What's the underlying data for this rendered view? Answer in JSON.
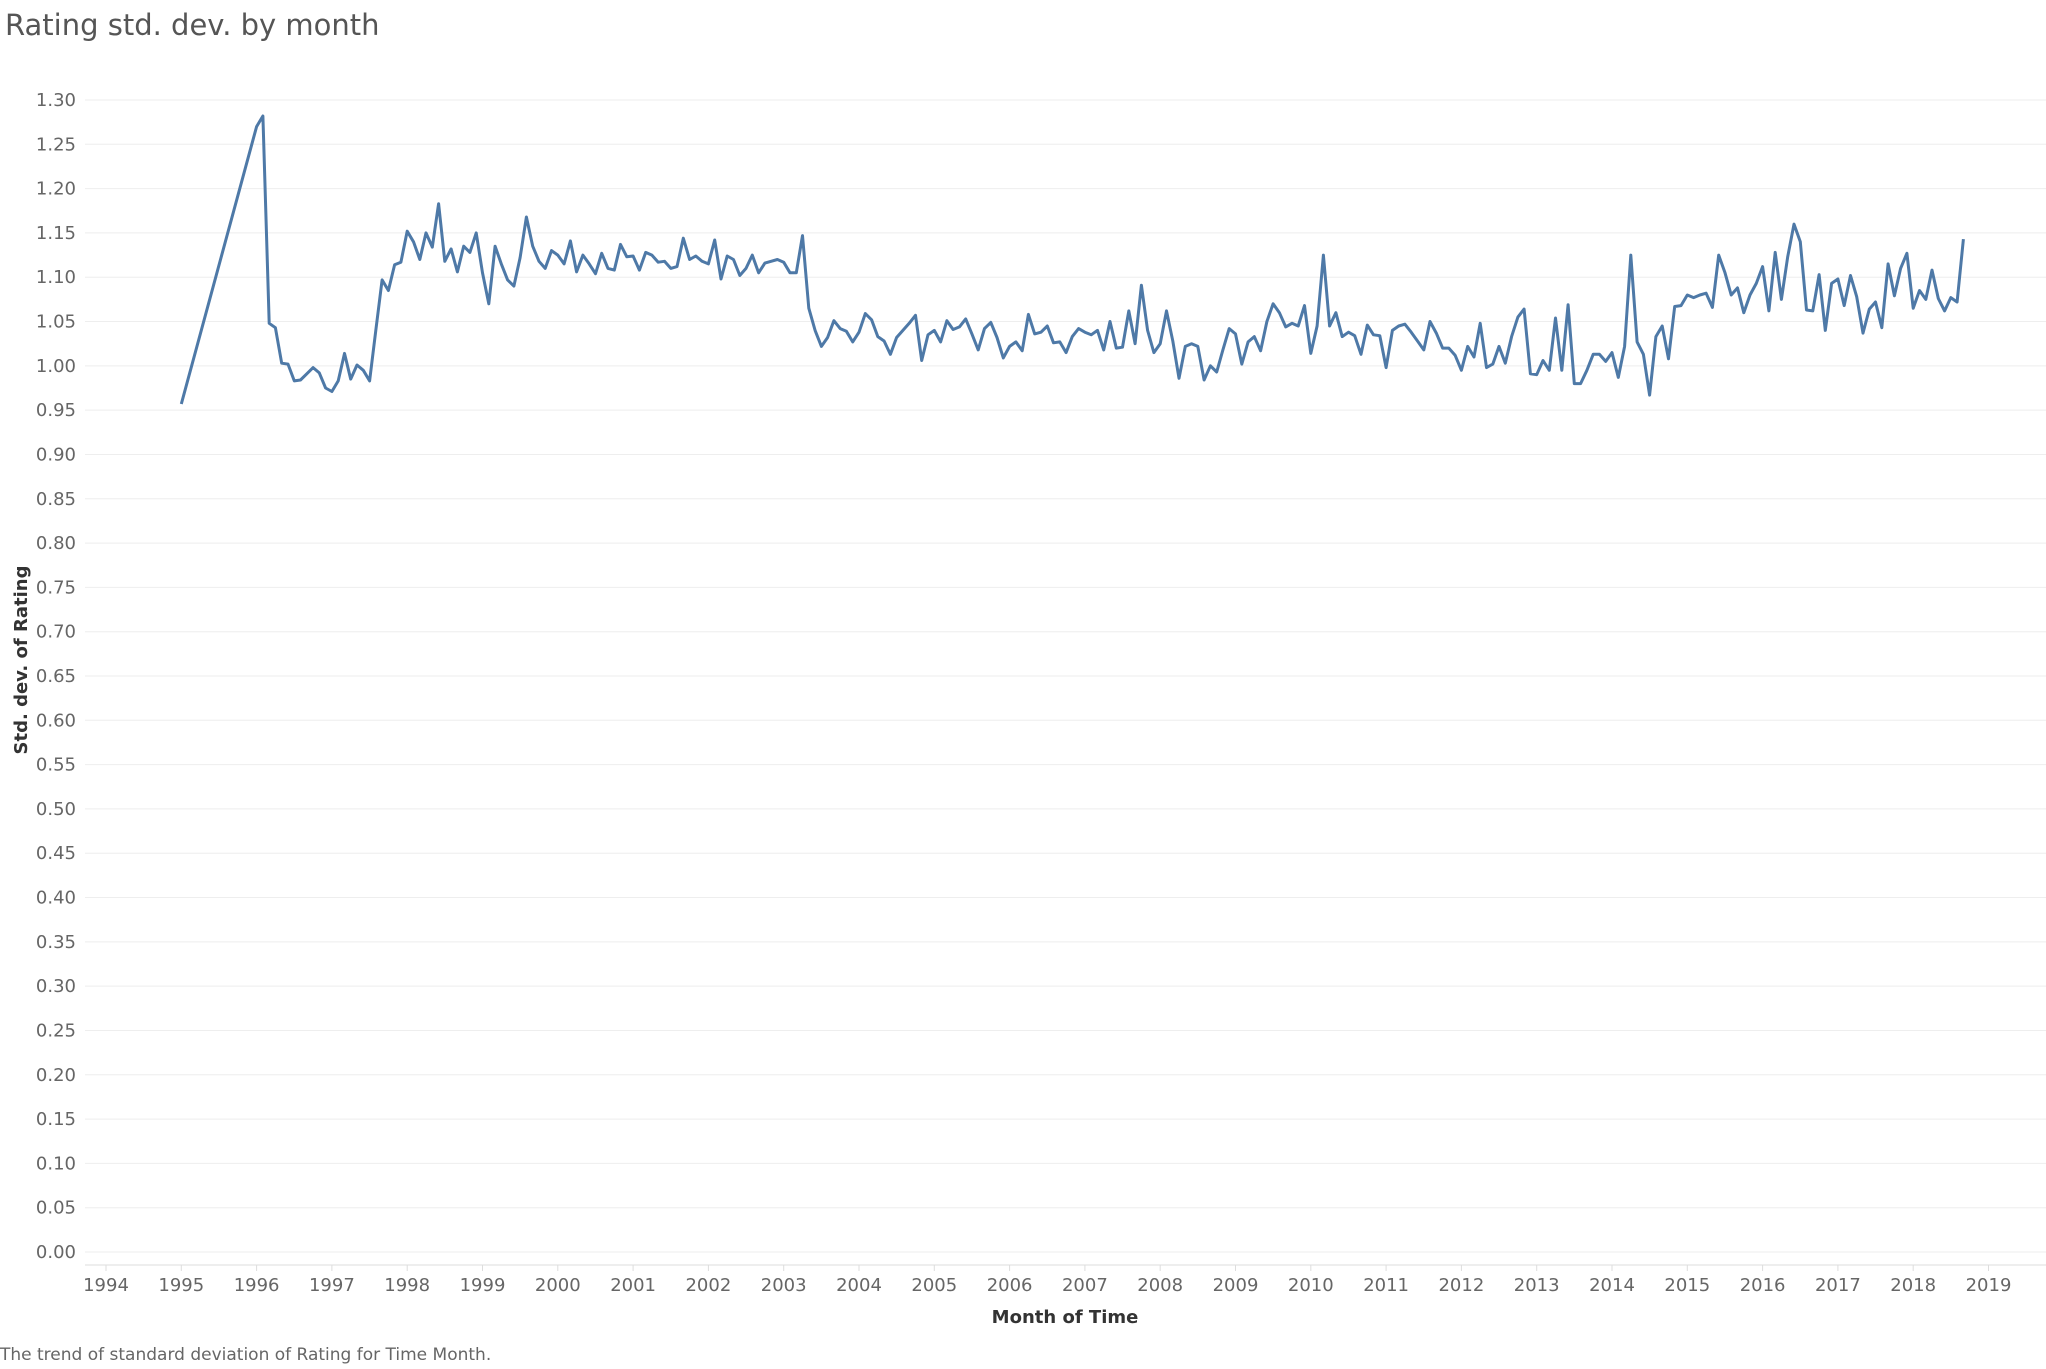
{
  "title": "Rating std. dev. by month",
  "caption": "The trend of standard deviation of Rating for Time Month.",
  "chart_data": {
    "type": "line",
    "xlabel": "Month of Time",
    "ylabel": "Std. dev. of Rating",
    "x_ticks": [
      "1994",
      "1995",
      "1996",
      "1997",
      "1998",
      "1999",
      "2000",
      "2001",
      "2002",
      "2003",
      "2004",
      "2005",
      "2006",
      "2007",
      "2008",
      "2009",
      "2010",
      "2011",
      "2012",
      "2013",
      "2014",
      "2015",
      "2016",
      "2017",
      "2018",
      "2019"
    ],
    "y_ticks": [
      "0.00",
      "0.05",
      "0.10",
      "0.15",
      "0.20",
      "0.25",
      "0.30",
      "0.35",
      "0.40",
      "0.45",
      "0.50",
      "0.55",
      "0.60",
      "0.65",
      "0.70",
      "0.75",
      "0.80",
      "0.85",
      "0.90",
      "0.95",
      "1.00",
      "1.05",
      "1.10",
      "1.15",
      "1.20",
      "1.25",
      "1.30"
    ],
    "xlim": [
      "1994-01",
      "2019-01"
    ],
    "ylim": [
      0,
      1.32
    ],
    "grid": true,
    "line_color": "#4e79a7",
    "series": [
      {
        "points": [
          [
            "1995-01",
            0.957
          ],
          [
            "1996-01",
            1.27
          ],
          [
            "1996-02",
            1.282
          ],
          [
            "1996-03",
            1.048
          ],
          [
            "1996-04",
            1.043
          ],
          [
            "1996-05",
            1.003
          ],
          [
            "1996-06",
            1.002
          ],
          [
            "1996-07",
            0.983
          ],
          [
            "1996-08",
            0.984
          ],
          [
            "1996-09",
            0.991
          ],
          [
            "1996-10",
            0.998
          ],
          [
            "1996-11",
            0.992
          ],
          [
            "1996-12",
            0.975
          ],
          [
            "1997-01",
            0.971
          ],
          [
            "1997-02",
            0.983
          ],
          [
            "1997-03",
            1.014
          ],
          [
            "1997-04",
            0.985
          ],
          [
            "1997-05",
            1.001
          ],
          [
            "1997-06",
            0.995
          ],
          [
            "1997-07",
            0.983
          ],
          [
            "1997-08",
            1.04
          ],
          [
            "1997-09",
            1.097
          ],
          [
            "1997-10",
            1.085
          ],
          [
            "1997-11",
            1.114
          ],
          [
            "1997-12",
            1.117
          ],
          [
            "1998-01",
            1.152
          ],
          [
            "1998-02",
            1.14
          ],
          [
            "1998-03",
            1.12
          ],
          [
            "1998-04",
            1.15
          ],
          [
            "1998-05",
            1.134
          ],
          [
            "1998-06",
            1.183
          ],
          [
            "1998-07",
            1.118
          ],
          [
            "1998-08",
            1.132
          ],
          [
            "1998-09",
            1.106
          ],
          [
            "1998-10",
            1.135
          ],
          [
            "1998-11",
            1.128
          ],
          [
            "1998-12",
            1.15
          ],
          [
            "1999-01",
            1.105
          ],
          [
            "1999-02",
            1.07
          ],
          [
            "1999-03",
            1.135
          ],
          [
            "1999-04",
            1.115
          ],
          [
            "1999-05",
            1.097
          ],
          [
            "1999-06",
            1.09
          ],
          [
            "1999-07",
            1.122
          ],
          [
            "1999-08",
            1.168
          ],
          [
            "1999-09",
            1.135
          ],
          [
            "1999-10",
            1.118
          ],
          [
            "1999-11",
            1.11
          ],
          [
            "1999-12",
            1.13
          ],
          [
            "2000-01",
            1.125
          ],
          [
            "2000-02",
            1.115
          ],
          [
            "2000-03",
            1.141
          ],
          [
            "2000-04",
            1.106
          ],
          [
            "2000-05",
            1.125
          ],
          [
            "2000-06",
            1.115
          ],
          [
            "2000-07",
            1.104
          ],
          [
            "2000-08",
            1.127
          ],
          [
            "2000-09",
            1.11
          ],
          [
            "2000-10",
            1.108
          ],
          [
            "2000-11",
            1.137
          ],
          [
            "2000-12",
            1.123
          ],
          [
            "2001-01",
            1.124
          ],
          [
            "2001-02",
            1.108
          ],
          [
            "2001-03",
            1.128
          ],
          [
            "2001-04",
            1.125
          ],
          [
            "2001-05",
            1.117
          ],
          [
            "2001-06",
            1.118
          ],
          [
            "2001-07",
            1.11
          ],
          [
            "2001-08",
            1.112
          ],
          [
            "2001-09",
            1.144
          ],
          [
            "2001-10",
            1.12
          ],
          [
            "2001-11",
            1.124
          ],
          [
            "2001-12",
            1.118
          ],
          [
            "2002-01",
            1.115
          ],
          [
            "2002-02",
            1.142
          ],
          [
            "2002-03",
            1.098
          ],
          [
            "2002-04",
            1.124
          ],
          [
            "2002-05",
            1.12
          ],
          [
            "2002-06",
            1.102
          ],
          [
            "2002-07",
            1.11
          ],
          [
            "2002-08",
            1.125
          ],
          [
            "2002-09",
            1.105
          ],
          [
            "2002-10",
            1.116
          ],
          [
            "2002-11",
            1.118
          ],
          [
            "2002-12",
            1.12
          ],
          [
            "2003-01",
            1.117
          ],
          [
            "2003-02",
            1.105
          ],
          [
            "2003-03",
            1.105
          ],
          [
            "2003-04",
            1.147
          ],
          [
            "2003-05",
            1.065
          ],
          [
            "2003-06",
            1.04
          ],
          [
            "2003-07",
            1.022
          ],
          [
            "2003-08",
            1.032
          ],
          [
            "2003-09",
            1.051
          ],
          [
            "2003-10",
            1.042
          ],
          [
            "2003-11",
            1.039
          ],
          [
            "2003-12",
            1.027
          ],
          [
            "2004-01",
            1.038
          ],
          [
            "2004-02",
            1.059
          ],
          [
            "2004-03",
            1.052
          ],
          [
            "2004-04",
            1.033
          ],
          [
            "2004-05",
            1.028
          ],
          [
            "2004-06",
            1.013
          ],
          [
            "2004-07",
            1.032
          ],
          [
            "2004-08",
            1.04
          ],
          [
            "2004-09",
            1.048
          ],
          [
            "2004-10",
            1.057
          ],
          [
            "2004-11",
            1.006
          ],
          [
            "2004-12",
            1.035
          ],
          [
            "2005-01",
            1.04
          ],
          [
            "2005-02",
            1.027
          ],
          [
            "2005-03",
            1.051
          ],
          [
            "2005-04",
            1.041
          ],
          [
            "2005-05",
            1.044
          ],
          [
            "2005-06",
            1.053
          ],
          [
            "2005-07",
            1.036
          ],
          [
            "2005-08",
            1.018
          ],
          [
            "2005-09",
            1.042
          ],
          [
            "2005-10",
            1.049
          ],
          [
            "2005-11",
            1.032
          ],
          [
            "2005-12",
            1.009
          ],
          [
            "2006-01",
            1.022
          ],
          [
            "2006-02",
            1.027
          ],
          [
            "2006-03",
            1.017
          ],
          [
            "2006-04",
            1.058
          ],
          [
            "2006-05",
            1.036
          ],
          [
            "2006-06",
            1.038
          ],
          [
            "2006-07",
            1.045
          ],
          [
            "2006-08",
            1.026
          ],
          [
            "2006-09",
            1.027
          ],
          [
            "2006-10",
            1.015
          ],
          [
            "2006-11",
            1.033
          ],
          [
            "2006-12",
            1.042
          ],
          [
            "2007-01",
            1.038
          ],
          [
            "2007-02",
            1.035
          ],
          [
            "2007-03",
            1.04
          ],
          [
            "2007-04",
            1.018
          ],
          [
            "2007-05",
            1.05
          ],
          [
            "2007-06",
            1.02
          ],
          [
            "2007-07",
            1.021
          ],
          [
            "2007-08",
            1.062
          ],
          [
            "2007-09",
            1.025
          ],
          [
            "2007-10",
            1.091
          ],
          [
            "2007-11",
            1.04
          ],
          [
            "2007-12",
            1.015
          ],
          [
            "2008-01",
            1.025
          ],
          [
            "2008-02",
            1.062
          ],
          [
            "2008-03",
            1.028
          ],
          [
            "2008-04",
            0.986
          ],
          [
            "2008-05",
            1.022
          ],
          [
            "2008-06",
            1.025
          ],
          [
            "2008-07",
            1.022
          ],
          [
            "2008-08",
            0.984
          ],
          [
            "2008-09",
            1.0
          ],
          [
            "2008-10",
            0.993
          ],
          [
            "2008-11",
            1.018
          ],
          [
            "2008-12",
            1.042
          ],
          [
            "2009-01",
            1.036
          ],
          [
            "2009-02",
            1.002
          ],
          [
            "2009-03",
            1.027
          ],
          [
            "2009-04",
            1.033
          ],
          [
            "2009-05",
            1.017
          ],
          [
            "2009-06",
            1.05
          ],
          [
            "2009-07",
            1.07
          ],
          [
            "2009-08",
            1.06
          ],
          [
            "2009-09",
            1.044
          ],
          [
            "2009-10",
            1.048
          ],
          [
            "2009-11",
            1.045
          ],
          [
            "2009-12",
            1.068
          ],
          [
            "2010-01",
            1.014
          ],
          [
            "2010-02",
            1.045
          ],
          [
            "2010-03",
            1.125
          ],
          [
            "2010-04",
            1.045
          ],
          [
            "2010-05",
            1.06
          ],
          [
            "2010-06",
            1.033
          ],
          [
            "2010-07",
            1.038
          ],
          [
            "2010-08",
            1.034
          ],
          [
            "2010-09",
            1.013
          ],
          [
            "2010-10",
            1.046
          ],
          [
            "2010-11",
            1.035
          ],
          [
            "2010-12",
            1.034
          ],
          [
            "2011-01",
            0.998
          ],
          [
            "2011-02",
            1.04
          ],
          [
            "2011-03",
            1.045
          ],
          [
            "2011-04",
            1.047
          ],
          [
            "2011-05",
            1.038
          ],
          [
            "2011-06",
            1.028
          ],
          [
            "2011-07",
            1.018
          ],
          [
            "2011-08",
            1.05
          ],
          [
            "2011-09",
            1.037
          ],
          [
            "2011-10",
            1.02
          ],
          [
            "2011-11",
            1.02
          ],
          [
            "2011-12",
            1.012
          ],
          [
            "2012-01",
            0.995
          ],
          [
            "2012-02",
            1.022
          ],
          [
            "2012-03",
            1.01
          ],
          [
            "2012-04",
            1.048
          ],
          [
            "2012-05",
            0.998
          ],
          [
            "2012-06",
            1.002
          ],
          [
            "2012-07",
            1.022
          ],
          [
            "2012-08",
            1.003
          ],
          [
            "2012-09",
            1.033
          ],
          [
            "2012-10",
            1.055
          ],
          [
            "2012-11",
            1.064
          ],
          [
            "2012-12",
            0.991
          ],
          [
            "2013-01",
            0.99
          ],
          [
            "2013-02",
            1.006
          ],
          [
            "2013-03",
            0.995
          ],
          [
            "2013-04",
            1.054
          ],
          [
            "2013-05",
            0.995
          ],
          [
            "2013-06",
            1.069
          ],
          [
            "2013-07",
            0.98
          ],
          [
            "2013-08",
            0.98
          ],
          [
            "2013-09",
            0.995
          ],
          [
            "2013-10",
            1.013
          ],
          [
            "2013-11",
            1.013
          ],
          [
            "2013-12",
            1.005
          ],
          [
            "2014-01",
            1.015
          ],
          [
            "2014-02",
            0.987
          ],
          [
            "2014-03",
            1.022
          ],
          [
            "2014-04",
            1.125
          ],
          [
            "2014-05",
            1.027
          ],
          [
            "2014-06",
            1.013
          ],
          [
            "2014-07",
            0.967
          ],
          [
            "2014-08",
            1.033
          ],
          [
            "2014-09",
            1.045
          ],
          [
            "2014-10",
            1.008
          ],
          [
            "2014-11",
            1.067
          ],
          [
            "2014-12",
            1.068
          ],
          [
            "2015-01",
            1.08
          ],
          [
            "2015-02",
            1.077
          ],
          [
            "2015-03",
            1.08
          ],
          [
            "2015-04",
            1.082
          ],
          [
            "2015-05",
            1.066
          ],
          [
            "2015-06",
            1.125
          ],
          [
            "2015-07",
            1.105
          ],
          [
            "2015-08",
            1.08
          ],
          [
            "2015-09",
            1.088
          ],
          [
            "2015-10",
            1.06
          ],
          [
            "2015-11",
            1.08
          ],
          [
            "2015-12",
            1.093
          ],
          [
            "2016-01",
            1.112
          ],
          [
            "2016-02",
            1.062
          ],
          [
            "2016-03",
            1.128
          ],
          [
            "2016-04",
            1.075
          ],
          [
            "2016-05",
            1.123
          ],
          [
            "2016-06",
            1.16
          ],
          [
            "2016-07",
            1.14
          ],
          [
            "2016-08",
            1.063
          ],
          [
            "2016-09",
            1.062
          ],
          [
            "2016-10",
            1.103
          ],
          [
            "2016-11",
            1.04
          ],
          [
            "2016-12",
            1.093
          ],
          [
            "2017-01",
            1.098
          ],
          [
            "2017-02",
            1.068
          ],
          [
            "2017-03",
            1.102
          ],
          [
            "2017-04",
            1.078
          ],
          [
            "2017-05",
            1.037
          ],
          [
            "2017-06",
            1.064
          ],
          [
            "2017-07",
            1.072
          ],
          [
            "2017-08",
            1.043
          ],
          [
            "2017-09",
            1.115
          ],
          [
            "2017-10",
            1.079
          ],
          [
            "2017-11",
            1.11
          ],
          [
            "2017-12",
            1.127
          ],
          [
            "2018-01",
            1.065
          ],
          [
            "2018-02",
            1.085
          ],
          [
            "2018-03",
            1.075
          ],
          [
            "2018-04",
            1.108
          ],
          [
            "2018-05",
            1.076
          ],
          [
            "2018-06",
            1.062
          ],
          [
            "2018-07",
            1.077
          ],
          [
            "2018-08",
            1.072
          ],
          [
            "2018-09",
            1.143
          ]
        ]
      }
    ]
  }
}
